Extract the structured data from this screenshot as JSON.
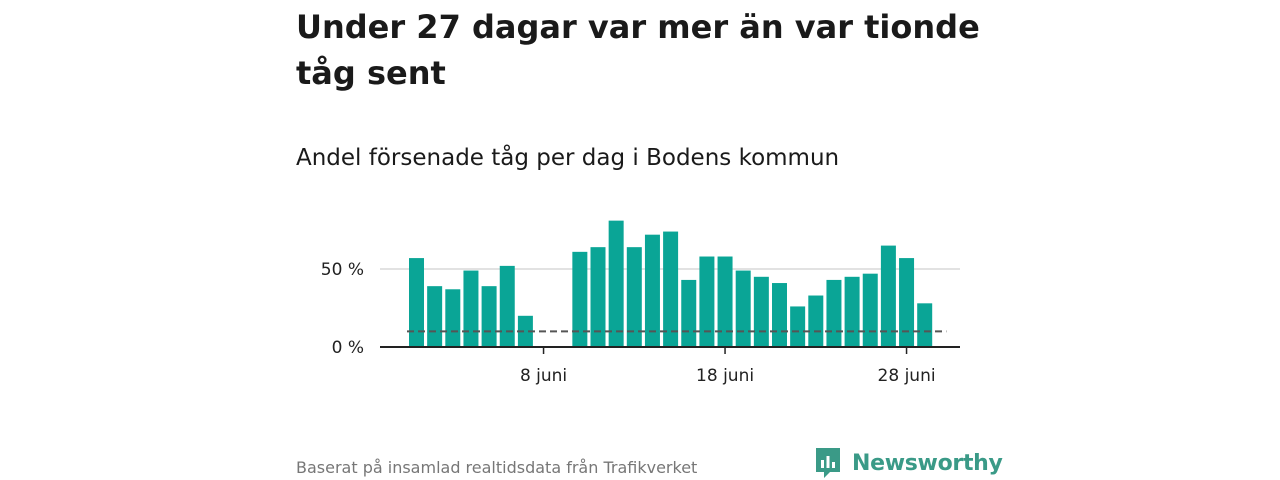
{
  "title": "Under 27 dagar var mer än var tionde tåg sent",
  "subtitle": "Andel försenade tåg per dag i Bodens kommun",
  "footer": {
    "source": "Baserat på insamlad realtidsdata från Trafikverket",
    "brand": "Newsworthy"
  },
  "colors": {
    "bar": "#0aa596",
    "reference_line": "#555555",
    "grid": "#d9d9d9",
    "axis": "#222222",
    "brand": "#3a9a87"
  },
  "chart_data": {
    "type": "bar",
    "x_start_day": 1,
    "x_end_day": 30,
    "values": [
      57,
      39,
      37,
      49,
      39,
      52,
      20,
      null,
      null,
      61,
      64,
      81,
      64,
      72,
      74,
      43,
      58,
      58,
      49,
      45,
      41,
      26,
      33,
      43,
      45,
      47,
      65,
      57,
      28,
      null
    ],
    "reference_line": 10,
    "ylim": [
      0,
      100
    ],
    "yticks": [
      {
        "value": 0,
        "label": "0 %"
      },
      {
        "value": 50,
        "label": "50 %"
      }
    ],
    "xticks": [
      {
        "day": 8,
        "label": "8 juni"
      },
      {
        "day": 18,
        "label": "18 juni"
      },
      {
        "day": 28,
        "label": "28 juni"
      }
    ],
    "grid": true
  }
}
